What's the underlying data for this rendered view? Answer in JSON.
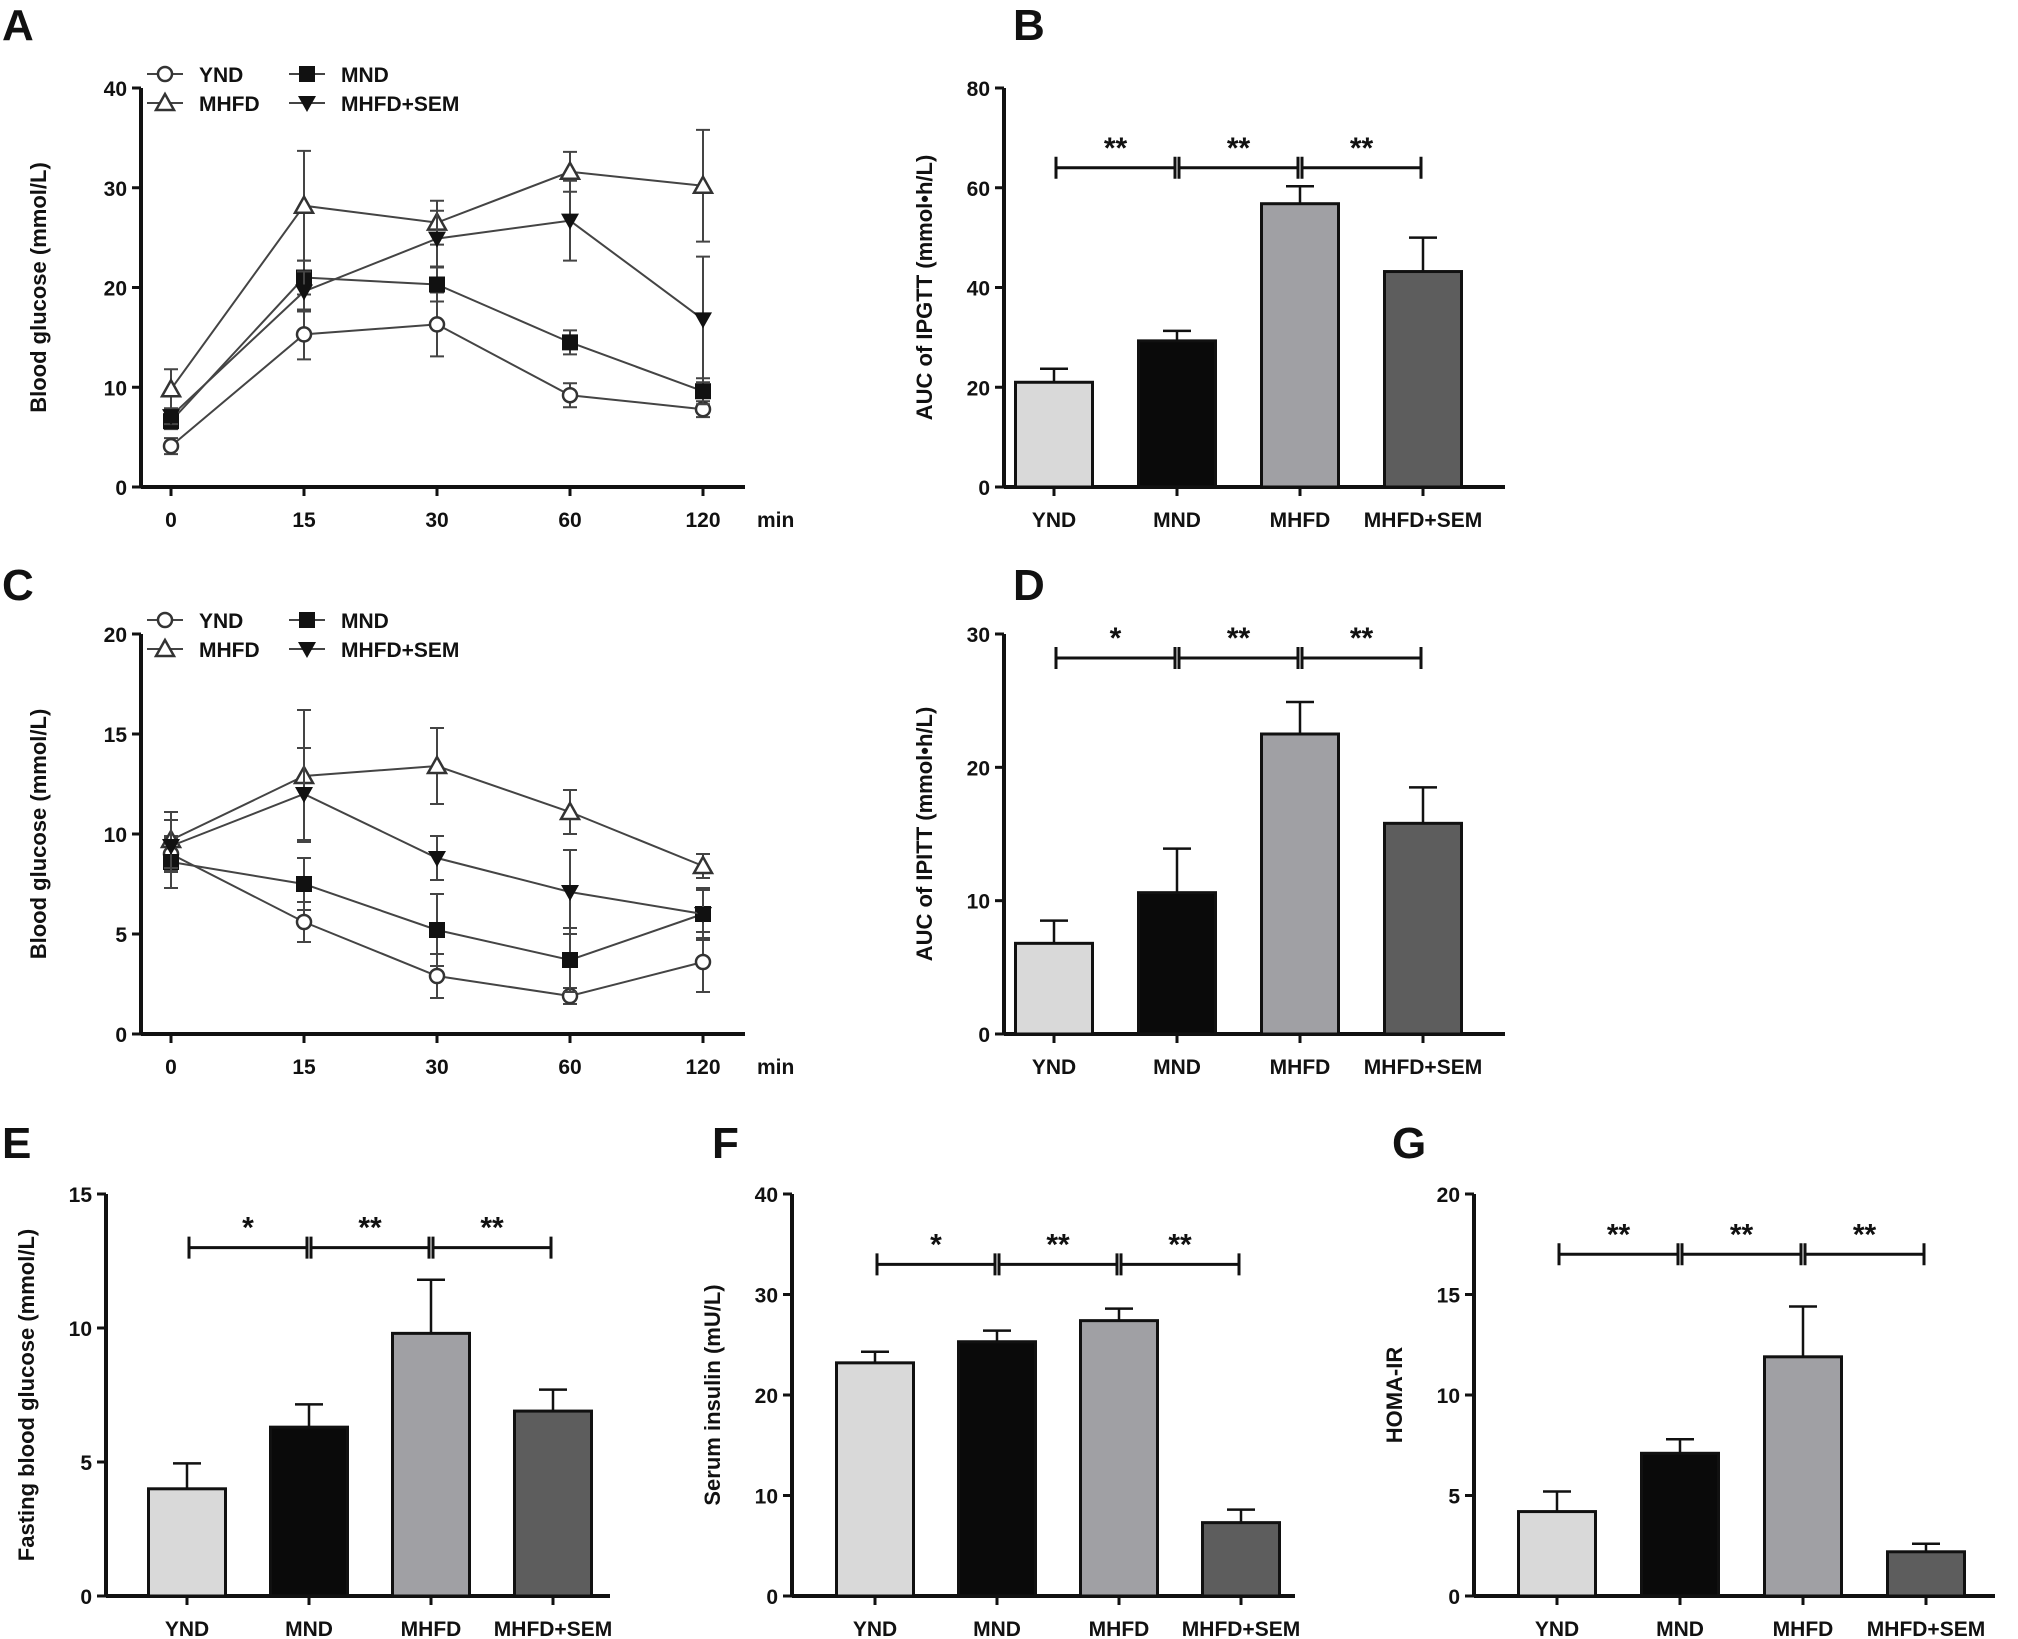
{
  "colors": {
    "YND": "#d9d9d9",
    "MND": "#0a0a0a",
    "MHFD": "#a0a0a4",
    "MHFD+SEM": "#5d5d5d",
    "line": "#444444"
  },
  "chart_data": [
    {
      "panel": "A",
      "type": "line",
      "ylabel": "Blood glucose (mmol/L)",
      "xunit": "min",
      "categories": [
        "0",
        "15",
        "30",
        "60",
        "120"
      ],
      "ylim": [
        0,
        40
      ],
      "yticks": [
        0,
        10,
        20,
        30,
        40
      ],
      "legend": "top-left",
      "series": [
        {
          "name": "YND",
          "marker": "open-circle",
          "values": [
            4.1,
            15.3,
            16.3,
            9.2,
            7.8
          ],
          "errors": [
            0.8,
            2.5,
            3.2,
            1.2,
            0.8
          ]
        },
        {
          "name": "MND",
          "marker": "filled-square",
          "values": [
            6.6,
            21.0,
            20.3,
            14.5,
            9.6
          ],
          "errors": [
            0.8,
            1.7,
            1.7,
            1.2,
            1.3
          ]
        },
        {
          "name": "MHFD",
          "marker": "open-triangle-up",
          "values": [
            9.8,
            28.2,
            26.5,
            31.6,
            30.2
          ],
          "errors": [
            2.0,
            5.5,
            2.2,
            2.0,
            5.6
          ]
        },
        {
          "name": "MHFD+SEM",
          "marker": "filled-triangle-down",
          "values": [
            7.1,
            19.6,
            24.9,
            26.7,
            16.8
          ],
          "errors": [
            0.8,
            2.0,
            2.8,
            4.0,
            6.3
          ]
        }
      ]
    },
    {
      "panel": "B",
      "type": "bar",
      "ylabel": "AUC of IPGTT (mmol•h/L)",
      "categories": [
        "YND",
        "MND",
        "MHFD",
        "MHFD+SEM"
      ],
      "ylim": [
        0,
        80
      ],
      "yticks": [
        0,
        20,
        40,
        60,
        80
      ],
      "values": [
        21.0,
        29.3,
        56.8,
        43.2
      ],
      "errors": [
        2.7,
        2.0,
        3.5,
        6.8
      ],
      "significance": [
        {
          "pair": [
            0,
            1
          ],
          "label": "**",
          "y": 64
        },
        {
          "pair": [
            1,
            2
          ],
          "label": "**",
          "y": 64
        },
        {
          "pair": [
            2,
            3
          ],
          "label": "**",
          "y": 64
        }
      ]
    },
    {
      "panel": "C",
      "type": "line",
      "ylabel": "Blood glucose (mmol/L)",
      "xunit": "min",
      "categories": [
        "0",
        "15",
        "30",
        "60",
        "120"
      ],
      "ylim": [
        0,
        20
      ],
      "yticks": [
        0,
        5,
        10,
        15,
        20
      ],
      "legend": "top-left",
      "series": [
        {
          "name": "YND",
          "marker": "open-circle",
          "values": [
            9.0,
            5.6,
            2.9,
            1.9,
            3.6
          ],
          "errors": [
            0.8,
            1.0,
            1.1,
            0.4,
            1.5
          ]
        },
        {
          "name": "MND",
          "marker": "filled-square",
          "values": [
            8.6,
            7.5,
            5.2,
            3.7,
            6.0
          ],
          "errors": [
            1.3,
            1.3,
            1.8,
            1.6,
            1.3
          ]
        },
        {
          "name": "MHFD",
          "marker": "open-triangle-up",
          "values": [
            9.7,
            12.9,
            13.4,
            11.1,
            8.4
          ],
          "errors": [
            1.4,
            3.3,
            1.9,
            1.1,
            0.6
          ]
        },
        {
          "name": "MHFD+SEM",
          "marker": "filled-triangle-down",
          "values": [
            9.4,
            12.0,
            8.8,
            7.1,
            6.0
          ],
          "errors": [
            1.3,
            2.3,
            1.1,
            2.1,
            1.2
          ]
        }
      ]
    },
    {
      "panel": "D",
      "type": "bar",
      "ylabel": "AUC of IPITT (mmol•h/L)",
      "categories": [
        "YND",
        "MND",
        "MHFD",
        "MHFD+SEM"
      ],
      "ylim": [
        0,
        30
      ],
      "yticks": [
        0,
        10,
        20,
        30
      ],
      "values": [
        6.8,
        10.6,
        22.5,
        15.8
      ],
      "errors": [
        1.7,
        3.3,
        2.4,
        2.7
      ],
      "significance": [
        {
          "pair": [
            0,
            1
          ],
          "label": "*",
          "y": 28.2
        },
        {
          "pair": [
            1,
            2
          ],
          "label": "**",
          "y": 28.2
        },
        {
          "pair": [
            2,
            3
          ],
          "label": "**",
          "y": 28.2
        }
      ]
    },
    {
      "panel": "E",
      "type": "bar",
      "ylabel": "Fasting blood glucose (mmol/L)",
      "categories": [
        "YND",
        "MND",
        "MHFD",
        "MHFD+SEM"
      ],
      "ylim": [
        0,
        15
      ],
      "yticks": [
        0,
        5,
        10,
        15
      ],
      "values": [
        4.0,
        6.3,
        9.8,
        6.9
      ],
      "errors": [
        0.95,
        0.85,
        2.0,
        0.8
      ],
      "significance": [
        {
          "pair": [
            0,
            1
          ],
          "label": "*",
          "y": 13.0
        },
        {
          "pair": [
            1,
            2
          ],
          "label": "**",
          "y": 13.0
        },
        {
          "pair": [
            2,
            3
          ],
          "label": "**",
          "y": 13.0
        }
      ]
    },
    {
      "panel": "F",
      "type": "bar",
      "ylabel": "Serum insulin (mU/L)",
      "categories": [
        "YND",
        "MND",
        "MHFD",
        "MHFD+SEM"
      ],
      "ylim": [
        0,
        40
      ],
      "yticks": [
        0,
        10,
        20,
        30,
        40
      ],
      "values": [
        23.2,
        25.3,
        27.4,
        7.3
      ],
      "errors": [
        1.1,
        1.1,
        1.2,
        1.3
      ],
      "significance": [
        {
          "pair": [
            0,
            1
          ],
          "label": "*",
          "y": 33
        },
        {
          "pair": [
            1,
            2
          ],
          "label": "**",
          "y": 33
        },
        {
          "pair": [
            2,
            3
          ],
          "label": "**",
          "y": 33
        }
      ]
    },
    {
      "panel": "G",
      "type": "bar",
      "ylabel": "HOMA-IR",
      "categories": [
        "YND",
        "MND",
        "MHFD",
        "MHFD+SEM"
      ],
      "ylim": [
        0,
        20
      ],
      "yticks": [
        0,
        5,
        10,
        15,
        20
      ],
      "values": [
        4.2,
        7.1,
        11.9,
        2.2
      ],
      "errors": [
        1.0,
        0.7,
        2.5,
        0.4
      ],
      "significance": [
        {
          "pair": [
            0,
            1
          ],
          "label": "**",
          "y": 17
        },
        {
          "pair": [
            1,
            2
          ],
          "label": "**",
          "y": 17
        },
        {
          "pair": [
            2,
            3
          ],
          "label": "**",
          "y": 17
        }
      ]
    }
  ]
}
